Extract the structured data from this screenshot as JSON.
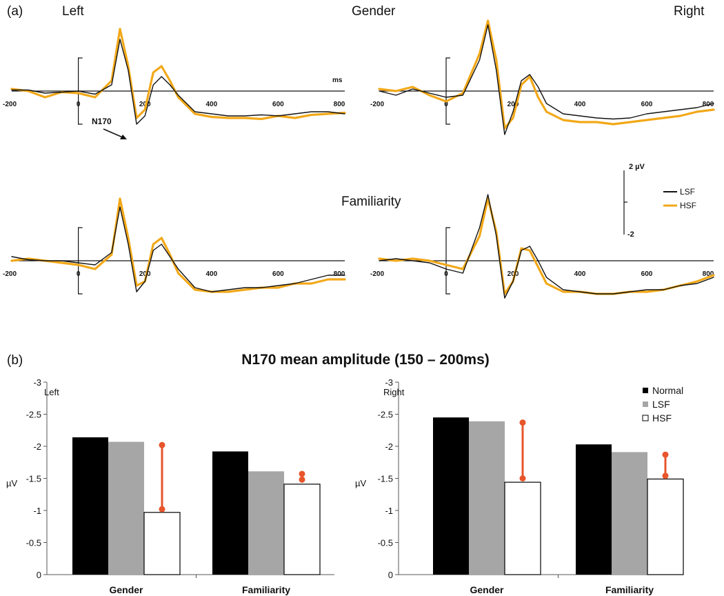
{
  "panel_a": {
    "label": "(a)",
    "left_label": "Left",
    "right_label": "Right",
    "row1_label": "Gender",
    "row2_label": "Familiarity",
    "x_ticks": [
      "-200",
      "0",
      "200",
      "400",
      "600",
      "800"
    ],
    "x_unit": "ms",
    "annotation": "N170",
    "scale_top": "2  µV",
    "scale_bottom": "-2",
    "legend": [
      {
        "name": "LSF",
        "color": "#111111"
      },
      {
        "name": "HSF",
        "color": "#F2A818"
      }
    ]
  },
  "panel_b": {
    "label": "(b)",
    "title": "N170 mean amplitude (150 – 200ms)",
    "ylabel": "µV",
    "legend": [
      {
        "name": "Normal",
        "color": "#000000"
      },
      {
        "name": "LSF",
        "color": "#A6A6A6"
      },
      {
        "name": "HSF",
        "color": "#FFFFFF"
      }
    ]
  },
  "chart_data": [
    {
      "type": "line",
      "title": "Gender - Left",
      "x": [
        -200,
        -150,
        -100,
        -50,
        0,
        50,
        100,
        125,
        150,
        175,
        200,
        225,
        250,
        275,
        300,
        350,
        400,
        450,
        500,
        550,
        600,
        650,
        700,
        750,
        800
      ],
      "ylim": [
        -2,
        2
      ],
      "xlabel": "ms",
      "series": [
        {
          "name": "LSF",
          "values": [
            0.05,
            0.05,
            -0.1,
            -0.05,
            0.0,
            -0.15,
            0.3,
            2.5,
            1.0,
            -1.6,
            -1.2,
            0.3,
            0.7,
            0.3,
            -0.2,
            -1.0,
            -1.1,
            -1.2,
            -1.2,
            -1.15,
            -1.2,
            -1.1,
            -1.0,
            -1.0,
            -1.1
          ]
        },
        {
          "name": "HSF",
          "values": [
            0.1,
            0.0,
            -0.3,
            -0.05,
            -0.1,
            -0.3,
            0.5,
            3.0,
            1.2,
            -1.3,
            -0.9,
            0.9,
            1.2,
            0.5,
            -0.3,
            -1.1,
            -1.25,
            -1.3,
            -1.3,
            -1.35,
            -1.2,
            -1.3,
            -1.15,
            -1.1,
            -1.05
          ]
        }
      ]
    },
    {
      "type": "line",
      "title": "Gender - Right",
      "x": [
        -200,
        -150,
        -100,
        -50,
        0,
        50,
        100,
        125,
        150,
        175,
        200,
        225,
        250,
        275,
        300,
        350,
        400,
        450,
        500,
        550,
        600,
        650,
        700,
        750,
        800
      ],
      "ylim": [
        -2,
        2
      ],
      "xlabel": "ms",
      "series": [
        {
          "name": "LSF",
          "values": [
            0.0,
            -0.2,
            0.1,
            -0.1,
            -0.3,
            -0.2,
            1.5,
            3.2,
            1.0,
            -2.1,
            -1.0,
            0.5,
            0.8,
            0.2,
            -0.6,
            -1.1,
            -1.2,
            -1.3,
            -1.35,
            -1.3,
            -1.1,
            -1.0,
            -0.9,
            -0.8,
            -0.6
          ]
        },
        {
          "name": "HSF",
          "values": [
            0.1,
            0.0,
            0.2,
            -0.2,
            -0.5,
            -0.1,
            1.8,
            3.4,
            1.5,
            -1.8,
            -1.3,
            0.3,
            0.7,
            -0.3,
            -1.0,
            -1.4,
            -1.5,
            -1.5,
            -1.6,
            -1.5,
            -1.4,
            -1.3,
            -1.2,
            -1.0,
            -0.9
          ]
        }
      ]
    },
    {
      "type": "line",
      "title": "Familiarity - Left",
      "x": [
        -200,
        -150,
        -100,
        -50,
        0,
        50,
        100,
        125,
        150,
        175,
        200,
        225,
        250,
        275,
        300,
        350,
        400,
        450,
        500,
        550,
        600,
        650,
        700,
        750,
        800
      ],
      "ylim": [
        -2,
        2
      ],
      "xlabel": "ms",
      "series": [
        {
          "name": "LSF",
          "values": [
            0.2,
            0.05,
            0.0,
            0.0,
            -0.1,
            -0.2,
            0.4,
            2.6,
            0.8,
            -1.5,
            -1.0,
            0.5,
            0.8,
            0.2,
            -0.4,
            -1.3,
            -1.5,
            -1.4,
            -1.3,
            -1.3,
            -1.2,
            -1.1,
            -0.9,
            -0.7,
            -0.7
          ]
        },
        {
          "name": "HSF",
          "values": [
            0.0,
            0.1,
            0.0,
            -0.1,
            -0.2,
            -0.4,
            0.3,
            3.0,
            1.1,
            -1.2,
            -1.0,
            0.8,
            1.1,
            0.3,
            -0.6,
            -1.4,
            -1.5,
            -1.5,
            -1.4,
            -1.3,
            -1.3,
            -1.1,
            -1.1,
            -0.9,
            -0.9
          ]
        }
      ]
    },
    {
      "type": "line",
      "title": "Familiarity - Right",
      "x": [
        -200,
        -150,
        -100,
        -50,
        0,
        50,
        100,
        125,
        150,
        175,
        200,
        225,
        250,
        275,
        300,
        350,
        400,
        450,
        500,
        550,
        600,
        650,
        700,
        750,
        800
      ],
      "ylim": [
        -2,
        2
      ],
      "xlabel": "ms",
      "series": [
        {
          "name": "LSF",
          "values": [
            0.0,
            0.1,
            0.0,
            -0.1,
            -0.4,
            -0.6,
            1.6,
            3.2,
            1.2,
            -1.8,
            -1.0,
            0.5,
            0.7,
            0.0,
            -0.8,
            -1.4,
            -1.5,
            -1.6,
            -1.6,
            -1.5,
            -1.4,
            -1.4,
            -1.2,
            -1.1,
            -0.8
          ]
        },
        {
          "name": "HSF",
          "values": [
            0.1,
            0.0,
            0.1,
            0.0,
            -0.2,
            -0.4,
            1.2,
            3.0,
            1.4,
            -1.6,
            -1.0,
            0.6,
            0.5,
            -0.3,
            -1.1,
            -1.5,
            -1.5,
            -1.6,
            -1.6,
            -1.5,
            -1.5,
            -1.4,
            -1.2,
            -1.0,
            -0.7
          ]
        }
      ]
    },
    {
      "type": "bar",
      "title": "Left",
      "categories": [
        "Gender",
        "Familiarity"
      ],
      "ylabel": "µV",
      "ylim": [
        0,
        -3
      ],
      "y_ticks": [
        "-3",
        "-2.5",
        "-2",
        "-1.5",
        "-1",
        "-0.5",
        "0"
      ],
      "series": [
        {
          "name": "Normal",
          "values": [
            -2.14,
            -1.92
          ]
        },
        {
          "name": "LSF",
          "values": [
            -2.07,
            -1.61
          ]
        },
        {
          "name": "HSF",
          "values": [
            -0.97,
            -1.41
          ]
        }
      ],
      "annotations": [
        [
          -1.02,
          -2.02
        ],
        [
          -1.48,
          -1.57
        ]
      ]
    },
    {
      "type": "bar",
      "title": "Right",
      "categories": [
        "Gender",
        "Familiarity"
      ],
      "ylabel": "µV",
      "ylim": [
        0,
        -3
      ],
      "y_ticks": [
        "-3",
        "-2.5",
        "-2",
        "-1.5",
        "-1",
        "-0.5",
        "0"
      ],
      "series": [
        {
          "name": "Normal",
          "values": [
            -2.45,
            -2.03
          ]
        },
        {
          "name": "LSF",
          "values": [
            -2.39,
            -1.91
          ]
        },
        {
          "name": "HSF",
          "values": [
            -1.44,
            -1.49
          ]
        }
      ],
      "annotations": [
        [
          -1.5,
          -2.37
        ],
        [
          -1.54,
          -1.87
        ]
      ]
    }
  ]
}
